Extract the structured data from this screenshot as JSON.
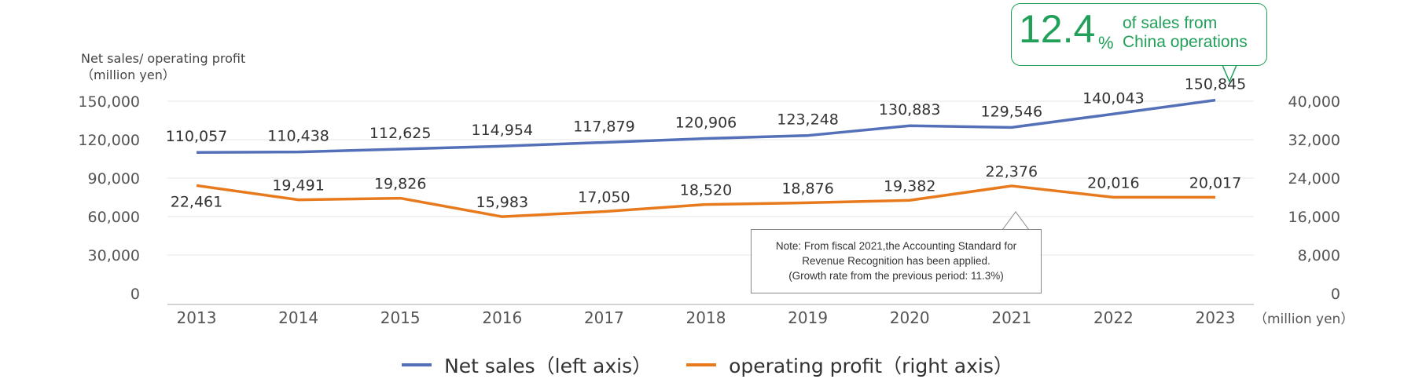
{
  "chart_data": {
    "type": "line",
    "ylabel_left": "Net sales/ operating profit",
    "ylabel_left_unit": "（million yen）",
    "x_unit": "（million yen）",
    "categories": [
      "2013",
      "2014",
      "2015",
      "2016",
      "2017",
      "2018",
      "2019",
      "2020",
      "2021",
      "2022",
      "2023"
    ],
    "y_left_ticks": [
      "0",
      "30,000",
      "60,000",
      "90,000",
      "120,000",
      "150,000"
    ],
    "y_left_range": [
      0,
      150000
    ],
    "y_right_ticks": [
      "0",
      "8,000",
      "16,000",
      "24,000",
      "32,000",
      "40,000"
    ],
    "y_right_range": [
      0,
      40000
    ],
    "series": [
      {
        "name": "Net sales（left axis）",
        "axis": "left",
        "color": "#5470b8",
        "values": [
          110057,
          110438,
          112625,
          114954,
          117879,
          120906,
          123248,
          130883,
          129546,
          140043,
          150845
        ],
        "labels": [
          "110,057",
          "110,438",
          "112,625",
          "114,954",
          "117,879",
          "120,906",
          "123,248",
          "130,883",
          "129,546",
          "140,043",
          "150,845"
        ]
      },
      {
        "name": "operating profit（right axis）",
        "axis": "right",
        "color": "#e87a1e",
        "values": [
          22461,
          19491,
          19826,
          15983,
          17050,
          18520,
          18876,
          19382,
          22376,
          20016,
          20017
        ],
        "labels": [
          "22,461",
          "19,491",
          "19,826",
          "15,983",
          "17,050",
          "18,520",
          "18,876",
          "19,382",
          "22,376",
          "20,016",
          "20,017"
        ]
      }
    ],
    "grid": true
  },
  "callout": {
    "value": "12.4",
    "unit": "%",
    "line1": "of sales from",
    "line2": "China operations",
    "color": "#21a05a"
  },
  "note": {
    "line1": "Note:  From fiscal 2021,the Accounting Standard for",
    "line2": "Revenue Recognition has been applied.",
    "line3": "(Growth rate from the previous period: 11.3%)"
  }
}
